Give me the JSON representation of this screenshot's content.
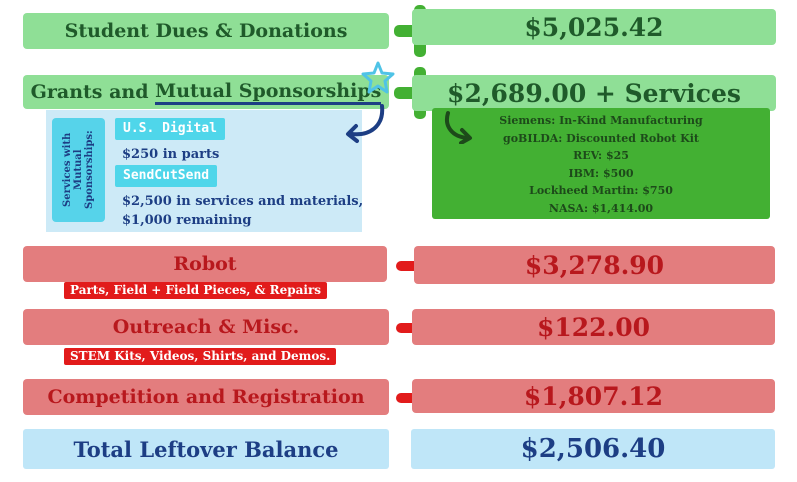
{
  "income": {
    "dues": {
      "label": "Student Dues & Donations",
      "amount": "$5,025.42"
    },
    "grants": {
      "label_pre": "Grants and ",
      "label_underlined": "Mutual Sponsorships",
      "amount": "$2,689.00 + Services"
    }
  },
  "services": {
    "side_label": "Services with Mutual Sponsorships:",
    "items": [
      {
        "name": "U.S. Digital",
        "detail": "$250 in parts"
      },
      {
        "name": "SendCutSend",
        "detail_line1": "$2,500 in services and materials,",
        "detail_line2": "$1,000 remaining"
      }
    ]
  },
  "sponsors": [
    "Siemens: In-Kind Manufacturing",
    "goBILDA: Discounted Robot Kit",
    "REV: $25",
    "IBM: $500",
    "Lockheed Martin: $750",
    "NASA: $1,414.00"
  ],
  "expenses": {
    "robot": {
      "label": "Robot",
      "amount": "$3,278.90",
      "note": "Parts, Field + Field Pieces, & Repairs"
    },
    "outreach": {
      "label": "Outreach & Misc.",
      "amount": "$122.00",
      "note": "STEM Kits, Videos, Shirts, and Demos."
    },
    "competition": {
      "label": "Competition and Registration",
      "amount": "$1,807.12"
    }
  },
  "total": {
    "label": "Total Leftover Balance",
    "amount": "$2,506.40"
  },
  "colors": {
    "green": "#8fdf96",
    "plus": "#43b033",
    "red": "#e37d7e",
    "minus": "#e21b1b",
    "blue": "#bfe6f8",
    "navy": "#1d3e84"
  },
  "icons": [
    "plus-icon",
    "minus-icon",
    "star-doodle-icon",
    "curved-arrow-icon"
  ]
}
